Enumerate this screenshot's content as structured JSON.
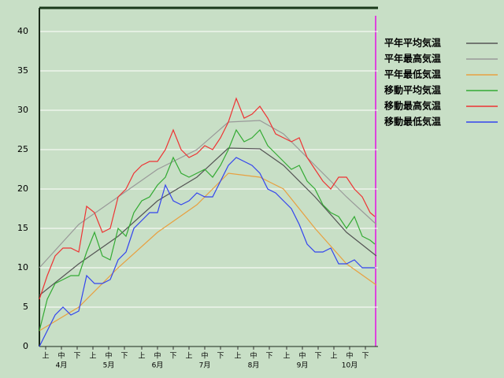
{
  "chart_data": {
    "type": "line",
    "xlim": [
      0,
      215
    ],
    "ylim": [
      0,
      43
    ],
    "yticks": [
      0,
      5,
      10,
      15,
      20,
      25,
      30,
      35,
      40
    ],
    "xticks": [
      {
        "value": 4,
        "label": "上"
      },
      {
        "value": 14,
        "label": "中"
      },
      {
        "value": 24,
        "label": "下"
      },
      {
        "value": 34,
        "label": "上"
      },
      {
        "value": 44,
        "label": "中"
      },
      {
        "value": 54,
        "label": "下"
      },
      {
        "value": 65,
        "label": "上"
      },
      {
        "value": 75,
        "label": "中"
      },
      {
        "value": 85,
        "label": "下"
      },
      {
        "value": 95,
        "label": "上"
      },
      {
        "value": 105,
        "label": "中"
      },
      {
        "value": 115,
        "label": "下"
      },
      {
        "value": 126,
        "label": "上"
      },
      {
        "value": 136,
        "label": "中"
      },
      {
        "value": 146,
        "label": "下"
      },
      {
        "value": 157,
        "label": "上"
      },
      {
        "value": 167,
        "label": "中"
      },
      {
        "value": 177,
        "label": "下"
      },
      {
        "value": 187,
        "label": "上"
      },
      {
        "value": 197,
        "label": "中"
      },
      {
        "value": 207,
        "label": "下"
      }
    ],
    "month_labels": [
      {
        "value": 14,
        "label": "4月"
      },
      {
        "value": 44,
        "label": "5月"
      },
      {
        "value": 75,
        "label": "6月"
      },
      {
        "value": 105,
        "label": "7月"
      },
      {
        "value": 136,
        "label": "8月"
      },
      {
        "value": 167,
        "label": "9月"
      },
      {
        "value": 197,
        "label": "10月"
      }
    ],
    "grid": true,
    "series": [
      {
        "name": "平年平均気温",
        "color": "#555555",
        "x": [
          0,
          25,
          50,
          75,
          100,
          120,
          140,
          155,
          175,
          195,
          214
        ],
        "values": [
          6.5,
          10.5,
          14,
          18.5,
          21.5,
          25.2,
          25.1,
          23,
          19,
          14.5,
          11.5
        ]
      },
      {
        "name": "平年最高気温",
        "color": "#999999",
        "x": [
          0,
          25,
          50,
          75,
          100,
          120,
          140,
          155,
          175,
          195,
          214
        ],
        "values": [
          10,
          15.5,
          19,
          22.5,
          25,
          28.5,
          28.7,
          27,
          23,
          19,
          15.5
        ]
      },
      {
        "name": "平年最低気温",
        "color": "#e8a040",
        "x": [
          0,
          25,
          50,
          75,
          100,
          120,
          140,
          155,
          175,
          195,
          214
        ],
        "values": [
          2,
          5,
          10,
          14.5,
          18,
          22,
          21.5,
          20,
          15,
          10.5,
          7.8
        ]
      },
      {
        "name": "移動平均気温",
        "color": "#33aa33",
        "x": [
          0,
          5,
          10,
          15,
          20,
          25,
          30,
          35,
          40,
          45,
          50,
          55,
          60,
          65,
          70,
          75,
          80,
          85,
          90,
          95,
          100,
          105,
          110,
          115,
          120,
          125,
          130,
          135,
          140,
          145,
          150,
          155,
          160,
          165,
          170,
          175,
          180,
          185,
          190,
          195,
          200,
          205,
          210,
          213
        ],
        "values": [
          2,
          6,
          8,
          8.5,
          9,
          9,
          12,
          14.5,
          11.5,
          11,
          15,
          14,
          17,
          18.5,
          19,
          20.5,
          21.5,
          24,
          22,
          21.5,
          22,
          22.5,
          21.5,
          23,
          25,
          27.5,
          26,
          26.5,
          27.5,
          25.5,
          24.5,
          23.5,
          22.5,
          23,
          21,
          20,
          18,
          17,
          16.5,
          15,
          16.5,
          14,
          13.5,
          13
        ]
      },
      {
        "name": "移動最高気温",
        "color": "#ee3333",
        "x": [
          0,
          5,
          10,
          15,
          20,
          25,
          30,
          35,
          40,
          45,
          50,
          55,
          60,
          65,
          70,
          75,
          80,
          85,
          90,
          95,
          100,
          105,
          110,
          115,
          120,
          125,
          130,
          135,
          140,
          145,
          150,
          155,
          160,
          165,
          170,
          175,
          180,
          185,
          190,
          195,
          200,
          205,
          210,
          213
        ],
        "values": [
          6,
          9,
          11.5,
          12.5,
          12.5,
          12,
          17.8,
          17,
          14.5,
          15,
          19,
          20,
          22,
          23,
          23.5,
          23.5,
          25,
          27.5,
          25,
          24,
          24.5,
          25.5,
          25,
          26.5,
          28.5,
          31.5,
          29,
          29.5,
          30.5,
          29,
          27,
          26.5,
          26,
          26.5,
          24,
          22.5,
          21,
          20,
          21.5,
          21.5,
          20,
          19,
          17,
          16.5
        ]
      },
      {
        "name": "移動最低気温",
        "color": "#3344ee",
        "x": [
          0,
          5,
          10,
          15,
          20,
          25,
          30,
          35,
          40,
          45,
          50,
          55,
          60,
          65,
          70,
          75,
          80,
          85,
          90,
          95,
          100,
          105,
          110,
          115,
          120,
          125,
          130,
          135,
          140,
          145,
          150,
          155,
          160,
          165,
          170,
          175,
          180,
          185,
          190,
          195,
          200,
          205,
          210,
          213
        ],
        "values": [
          0,
          2,
          4,
          5,
          4,
          4.5,
          9,
          8,
          8,
          8.5,
          11,
          12,
          15,
          16,
          17,
          17,
          20.5,
          18.5,
          18,
          18.5,
          19.5,
          19,
          19,
          21,
          23,
          24,
          23.5,
          23,
          22,
          20,
          19.5,
          18.5,
          17.5,
          15.5,
          13,
          12,
          12,
          12.5,
          10.5,
          10.5,
          11,
          10,
          10,
          10
        ]
      }
    ]
  }
}
